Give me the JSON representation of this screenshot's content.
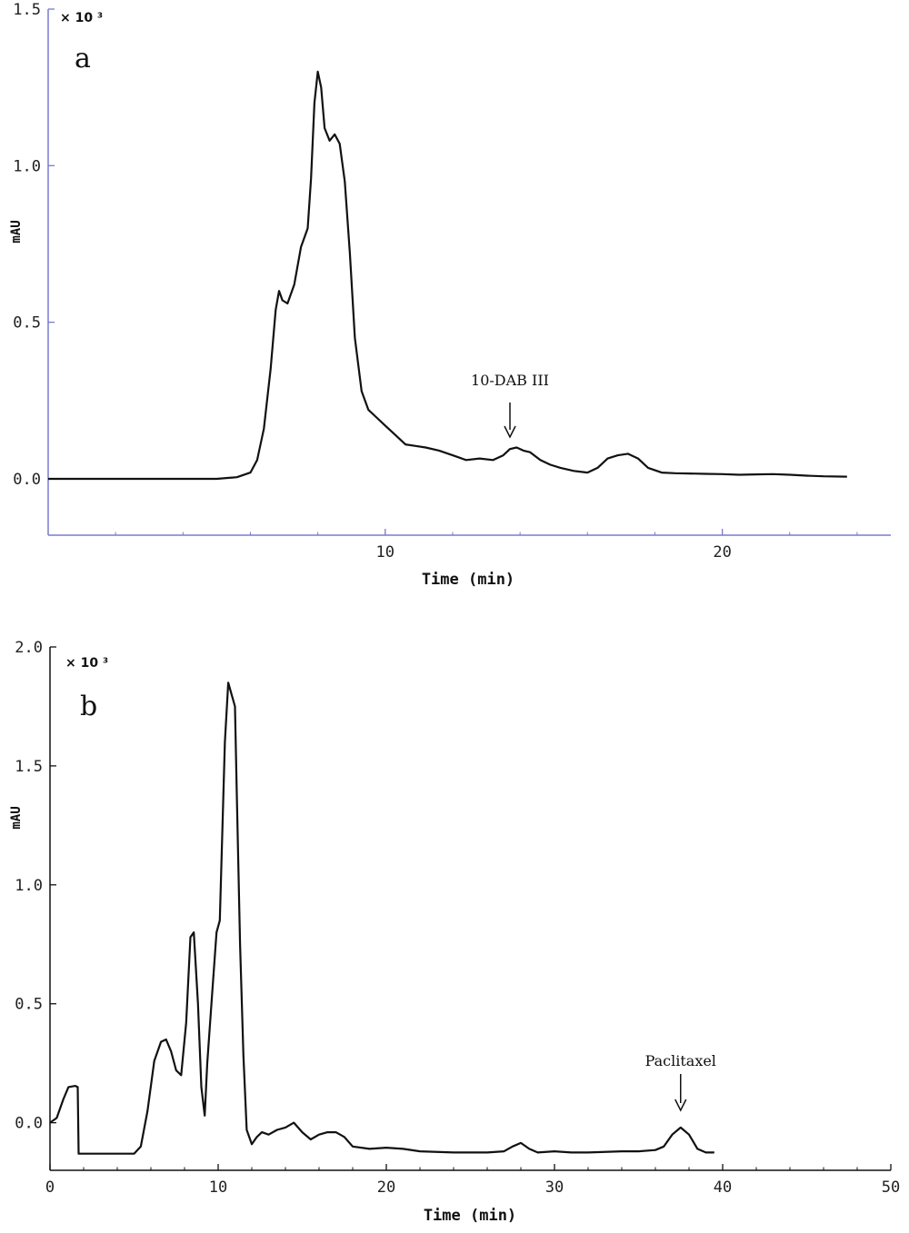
{
  "chart_data": [
    {
      "type": "line",
      "panel_label": "a",
      "multiplier": "× 10 ³",
      "xlabel": "Time (min)",
      "ylabel": "mAU",
      "xlim": [
        0,
        25
      ],
      "ylim": [
        -0.18,
        1.5
      ],
      "x_ticks": [
        10,
        20
      ],
      "x_tick_labels": [
        "10",
        "20"
      ],
      "y_ticks": [
        0.0,
        0.5,
        1.0,
        1.5
      ],
      "y_tick_labels": [
        "0.0",
        "0.5",
        "1.0",
        "1.5"
      ],
      "grid": false,
      "legend": "none",
      "series": [
        {
          "x": [
            0,
            5,
            5.6,
            6,
            6.2,
            6.4,
            6.6,
            6.75,
            6.85,
            6.95,
            7.1,
            7.3,
            7.5,
            7.7,
            7.8,
            7.9,
            8.0,
            8.1,
            8.2,
            8.35,
            8.5,
            8.65,
            8.8,
            8.95,
            9.1,
            9.3,
            9.5,
            9.7,
            10.0,
            10.3,
            10.6,
            10.9,
            11.2,
            11.6,
            12.0,
            12.4,
            12.8,
            13.2,
            13.5,
            13.7,
            13.9,
            14.1,
            14.3,
            14.6,
            14.9,
            15.2,
            15.6,
            16.0,
            16.3,
            16.6,
            16.9,
            17.2,
            17.5,
            17.8,
            18.2,
            18.6,
            19.0,
            19.5,
            20.0,
            20.5,
            21.0,
            21.5,
            22.0,
            22.5,
            23.0,
            23.7
          ],
          "y": [
            0,
            0,
            0.005,
            0.02,
            0.06,
            0.16,
            0.35,
            0.54,
            0.6,
            0.57,
            0.56,
            0.62,
            0.74,
            0.8,
            0.96,
            1.2,
            1.3,
            1.25,
            1.12,
            1.08,
            1.1,
            1.07,
            0.95,
            0.72,
            0.45,
            0.28,
            0.22,
            0.2,
            0.17,
            0.14,
            0.11,
            0.105,
            0.1,
            0.09,
            0.075,
            0.06,
            0.065,
            0.06,
            0.075,
            0.095,
            0.1,
            0.09,
            0.085,
            0.06,
            0.045,
            0.035,
            0.025,
            0.02,
            0.035,
            0.065,
            0.075,
            0.08,
            0.065,
            0.035,
            0.02,
            0.018,
            0.017,
            0.016,
            0.015,
            0.013,
            0.014,
            0.015,
            0.013,
            0.01,
            0.008,
            0.007
          ]
        }
      ],
      "annotations": [
        {
          "text": "10-DAB III",
          "x": 13.7,
          "y": 0.1
        }
      ]
    },
    {
      "type": "line",
      "panel_label": "b",
      "multiplier": "× 10 ³",
      "xlabel": "Time (min)",
      "ylabel": "mAU",
      "xlim": [
        0,
        50
      ],
      "ylim": [
        -0.2,
        2.0
      ],
      "x_ticks": [
        0,
        10,
        20,
        30,
        40,
        50
      ],
      "x_tick_labels": [
        "0",
        "10",
        "20",
        "30",
        "40",
        "50"
      ],
      "y_ticks": [
        0.0,
        0.5,
        1.0,
        1.5,
        2.0
      ],
      "y_tick_labels": [
        "0.0",
        "0.5",
        "1.0",
        "1.5",
        "2.0"
      ],
      "grid": false,
      "legend": "none",
      "series": [
        {
          "x": [
            0,
            0.4,
            0.8,
            1.1,
            1.5,
            1.65,
            1.7,
            3.0,
            5.0,
            5.4,
            5.8,
            6.2,
            6.6,
            6.9,
            7.2,
            7.5,
            7.8,
            8.1,
            8.35,
            8.55,
            8.8,
            9.0,
            9.2,
            9.35,
            9.6,
            9.9,
            10.1,
            10.4,
            10.6,
            10.8,
            11.0,
            11.1,
            11.3,
            11.5,
            11.7,
            12.0,
            12.3,
            12.6,
            13.0,
            13.5,
            14.0,
            14.5,
            15.0,
            15.5,
            16.0,
            16.5,
            17.0,
            17.5,
            18.0,
            19.0,
            20.0,
            21.0,
            22.0,
            24.0,
            26.0,
            27.0,
            27.5,
            28.0,
            28.5,
            29.0,
            30.0,
            31.0,
            32.0,
            34.0,
            35.0,
            36.0,
            36.5,
            37.0,
            37.5,
            38.0,
            38.5,
            39.0,
            39.5
          ],
          "y": [
            0.0,
            0.02,
            0.1,
            0.15,
            0.155,
            0.15,
            -0.13,
            -0.13,
            -0.13,
            -0.1,
            0.05,
            0.26,
            0.34,
            0.35,
            0.3,
            0.22,
            0.2,
            0.42,
            0.78,
            0.8,
            0.5,
            0.15,
            0.03,
            0.25,
            0.5,
            0.8,
            0.85,
            1.6,
            1.85,
            1.8,
            1.75,
            1.4,
            0.75,
            0.28,
            -0.03,
            -0.09,
            -0.06,
            -0.04,
            -0.05,
            -0.03,
            -0.02,
            0.0,
            -0.04,
            -0.07,
            -0.05,
            -0.04,
            -0.04,
            -0.06,
            -0.1,
            -0.11,
            -0.105,
            -0.11,
            -0.12,
            -0.125,
            -0.125,
            -0.12,
            -0.1,
            -0.085,
            -0.11,
            -0.125,
            -0.12,
            -0.125,
            -0.125,
            -0.12,
            -0.12,
            -0.115,
            -0.1,
            -0.05,
            -0.02,
            -0.05,
            -0.11,
            -0.125,
            -0.125
          ]
        }
      ],
      "annotations": [
        {
          "text": "Paclitaxel",
          "x": 37.5,
          "y": -0.02
        }
      ]
    }
  ]
}
